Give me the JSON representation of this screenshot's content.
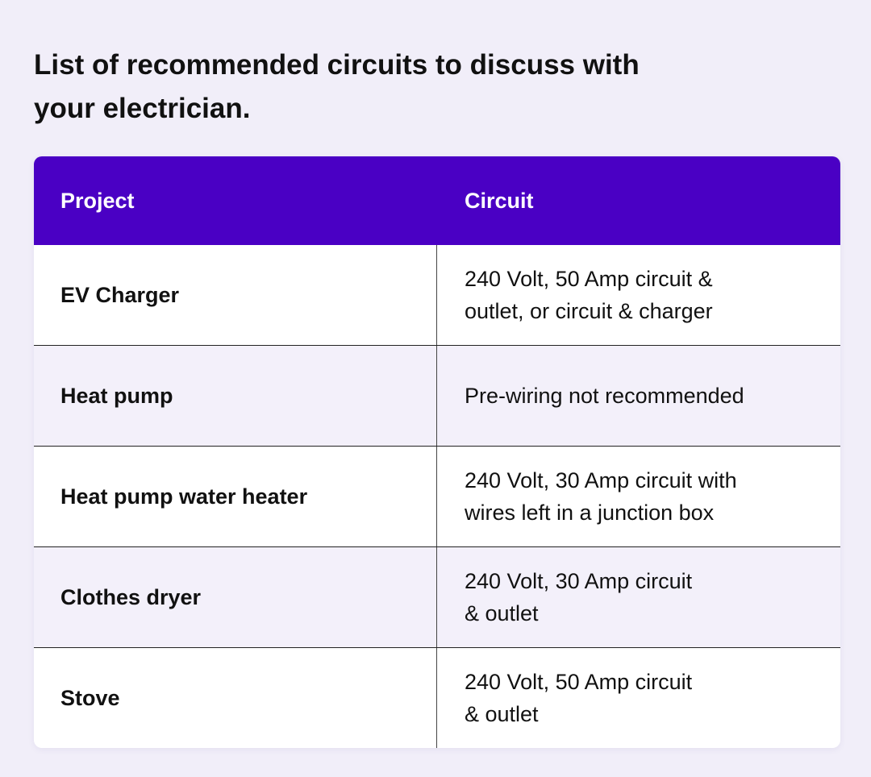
{
  "title": "List of recommended circuits to discuss with your electrician.",
  "colors": {
    "header": "#4a00c4",
    "background": "#f1eef9"
  },
  "table": {
    "headers": [
      "Project",
      "Circuit"
    ],
    "rows": [
      {
        "project": "EV Charger",
        "circuit": "240 Volt, 50 Amp circuit &\noutlet, or circuit & charger"
      },
      {
        "project": "Heat pump",
        "circuit": "Pre-wiring not recommended"
      },
      {
        "project": "Heat pump water heater",
        "circuit": "240 Volt, 30 Amp circuit with\nwires left in a junction box"
      },
      {
        "project": "Clothes dryer",
        "circuit": "240 Volt, 30 Amp circuit\n& outlet"
      },
      {
        "project": "Stove",
        "circuit": "240 Volt, 50 Amp circuit\n& outlet"
      }
    ]
  }
}
